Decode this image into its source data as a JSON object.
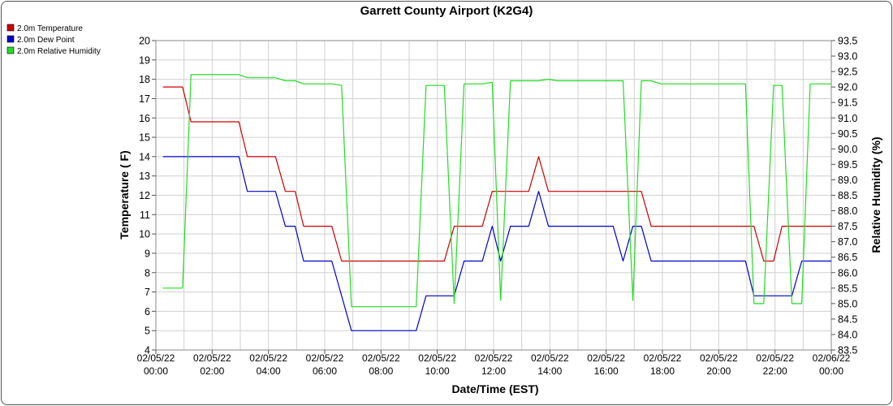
{
  "chart_data": {
    "type": "line",
    "title": "Garrett County Airport (K2G4)",
    "xlabel": "Date/Time (EST)",
    "ylabel_left": "Temperature ( F)",
    "ylabel_right": "Relative Humidity (%)",
    "y_left_range": [
      4,
      20
    ],
    "y_right_range": [
      83.5,
      93.5
    ],
    "x_range_hours": [
      0,
      24
    ],
    "grid": true,
    "legend_placement": "top-left",
    "x_ticks": [
      {
        "hour": 0,
        "date": "02/05/22",
        "time": "00:00"
      },
      {
        "hour": 2,
        "date": "02/05/22",
        "time": "02:00"
      },
      {
        "hour": 4,
        "date": "02/05/22",
        "time": "04:00"
      },
      {
        "hour": 6,
        "date": "02/05/22",
        "time": "06:00"
      },
      {
        "hour": 8,
        "date": "02/05/22",
        "time": "08:00"
      },
      {
        "hour": 10,
        "date": "02/05/22",
        "time": "10:00"
      },
      {
        "hour": 12,
        "date": "02/05/22",
        "time": "12:00"
      },
      {
        "hour": 14,
        "date": "02/05/22",
        "time": "14:00"
      },
      {
        "hour": 16,
        "date": "02/05/22",
        "time": "16:00"
      },
      {
        "hour": 18,
        "date": "02/05/22",
        "time": "18:00"
      },
      {
        "hour": 20,
        "date": "02/05/22",
        "time": "20:00"
      },
      {
        "hour": 22,
        "date": "02/05/22",
        "time": "22:00"
      },
      {
        "hour": 24,
        "date": "02/06/22",
        "time": "00:00"
      }
    ],
    "y_left_ticks": [
      "4",
      "5",
      "6",
      "7",
      "8",
      "9",
      "10",
      "11",
      "12",
      "13",
      "14",
      "15",
      "16",
      "17",
      "18",
      "19",
      "20"
    ],
    "y_right_ticks": [
      "83.5",
      "84.0",
      "84.5",
      "85.0",
      "85.5",
      "86.0",
      "86.5",
      "87.0",
      "87.5",
      "88.0",
      "88.5",
      "89.0",
      "89.5",
      "90.0",
      "90.5",
      "91.0",
      "91.5",
      "92.0",
      "92.5",
      "93.0",
      "93.5"
    ],
    "series": [
      {
        "name": "2.0m Temperature",
        "color": "#cc0000",
        "axis": "left",
        "points": [
          [
            0.25,
            17.6
          ],
          [
            0.95,
            17.6
          ],
          [
            1.25,
            15.8
          ],
          [
            2.95,
            15.8
          ],
          [
            3.25,
            14.0
          ],
          [
            4.25,
            14.0
          ],
          [
            4.6,
            12.2
          ],
          [
            4.95,
            12.2
          ],
          [
            5.25,
            10.4
          ],
          [
            6.25,
            10.4
          ],
          [
            6.6,
            8.6
          ],
          [
            10.25,
            8.6
          ],
          [
            10.6,
            10.4
          ],
          [
            11.6,
            10.4
          ],
          [
            11.95,
            12.2
          ],
          [
            13.25,
            12.2
          ],
          [
            13.6,
            14.0
          ],
          [
            13.95,
            12.2
          ],
          [
            16.6,
            12.2
          ],
          [
            16.95,
            12.2
          ],
          [
            17.25,
            12.2
          ],
          [
            17.6,
            10.4
          ],
          [
            21.25,
            10.4
          ],
          [
            21.6,
            8.6
          ],
          [
            21.95,
            8.6
          ],
          [
            22.25,
            10.4
          ],
          [
            24.0,
            10.4
          ]
        ]
      },
      {
        "name": "2.0m Dew Point",
        "color": "#0000cc",
        "axis": "left",
        "points": [
          [
            0.25,
            14.0
          ],
          [
            2.95,
            14.0
          ],
          [
            3.25,
            12.2
          ],
          [
            4.25,
            12.2
          ],
          [
            4.6,
            10.4
          ],
          [
            4.95,
            10.4
          ],
          [
            5.25,
            8.6
          ],
          [
            6.25,
            8.6
          ],
          [
            6.95,
            5.0
          ],
          [
            9.25,
            5.0
          ],
          [
            9.6,
            6.8
          ],
          [
            10.6,
            6.8
          ],
          [
            10.95,
            8.6
          ],
          [
            11.6,
            8.6
          ],
          [
            11.95,
            10.4
          ],
          [
            12.25,
            8.6
          ],
          [
            12.6,
            10.4
          ],
          [
            13.25,
            10.4
          ],
          [
            13.6,
            12.2
          ],
          [
            13.95,
            10.4
          ],
          [
            16.25,
            10.4
          ],
          [
            16.6,
            8.6
          ],
          [
            16.95,
            10.4
          ],
          [
            17.25,
            10.4
          ],
          [
            17.6,
            8.6
          ],
          [
            20.95,
            8.6
          ],
          [
            21.25,
            6.8
          ],
          [
            22.6,
            6.8
          ],
          [
            22.95,
            8.6
          ],
          [
            24.0,
            8.6
          ]
        ]
      },
      {
        "name": "2.0m Relative Humidity",
        "color": "#22dd22",
        "axis": "right",
        "points": [
          [
            0.25,
            85.5
          ],
          [
            0.95,
            85.5
          ],
          [
            1.25,
            92.4
          ],
          [
            2.95,
            92.4
          ],
          [
            3.25,
            92.3
          ],
          [
            4.25,
            92.3
          ],
          [
            4.6,
            92.2
          ],
          [
            4.95,
            92.2
          ],
          [
            5.25,
            92.1
          ],
          [
            6.25,
            92.1
          ],
          [
            6.6,
            92.05
          ],
          [
            6.95,
            84.9
          ],
          [
            9.25,
            84.9
          ],
          [
            9.6,
            92.05
          ],
          [
            10.25,
            92.05
          ],
          [
            10.6,
            85.0
          ],
          [
            10.95,
            92.1
          ],
          [
            11.6,
            92.1
          ],
          [
            11.95,
            92.15
          ],
          [
            12.25,
            85.1
          ],
          [
            12.6,
            92.2
          ],
          [
            13.6,
            92.2
          ],
          [
            13.95,
            92.25
          ],
          [
            14.25,
            92.2
          ],
          [
            16.6,
            92.2
          ],
          [
            16.95,
            85.1
          ],
          [
            17.25,
            92.2
          ],
          [
            17.6,
            92.2
          ],
          [
            17.95,
            92.1
          ],
          [
            20.95,
            92.1
          ],
          [
            21.25,
            85.0
          ],
          [
            21.6,
            85.0
          ],
          [
            21.95,
            92.05
          ],
          [
            22.25,
            92.05
          ],
          [
            22.6,
            85.0
          ],
          [
            22.95,
            85.0
          ],
          [
            23.25,
            92.1
          ],
          [
            24.0,
            92.1
          ]
        ]
      }
    ]
  }
}
